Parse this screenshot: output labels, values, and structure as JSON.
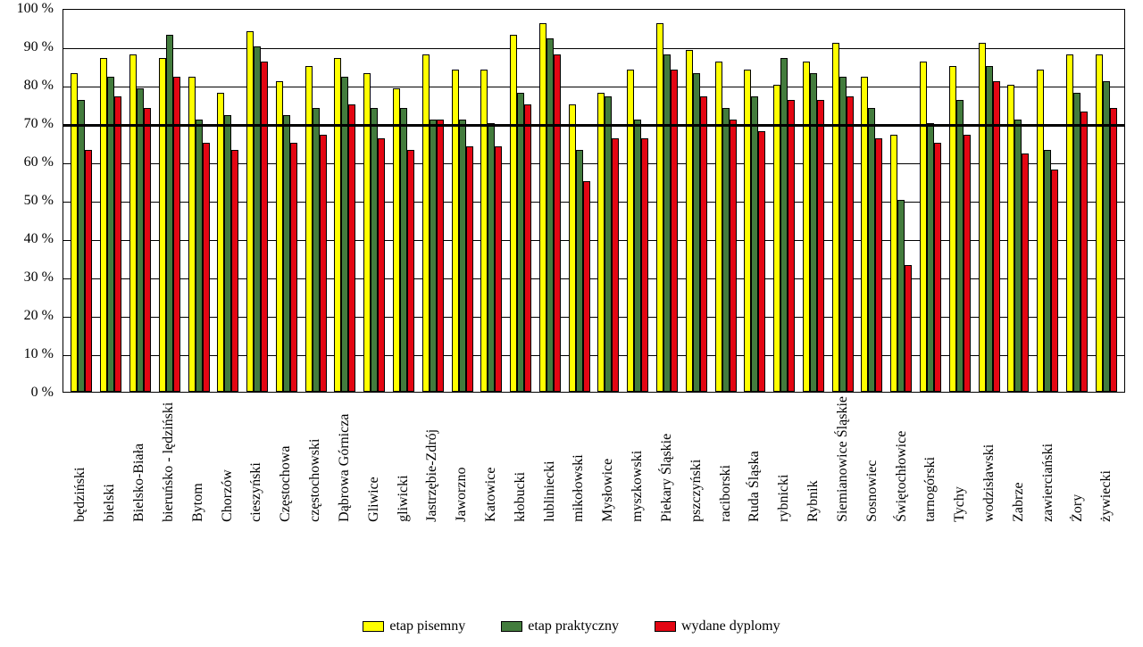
{
  "chart": {
    "type": "bar",
    "background_color": "#ffffff",
    "grid_color": "#000000",
    "border_color": "#000000",
    "ylim": [
      0,
      100
    ],
    "ytick_step": 10,
    "ytick_suffix": " %",
    "reference_line": 70,
    "reference_line_width": 3,
    "bar_border_color": "#000000",
    "font_family": "Times New Roman",
    "tick_fontsize": 16,
    "label_fontsize": 16,
    "series": [
      {
        "name": "etap pisemny",
        "color": "#ffff00"
      },
      {
        "name": "etap praktyczny",
        "color": "#437c3d"
      },
      {
        "name": "wydane dyplomy",
        "color": "#e30613"
      }
    ],
    "categories": [
      "będziński",
      "bielski",
      "Bielsko-Biała",
      "bieruńsko - lędziński",
      "Bytom",
      "Chorzów",
      "cieszyński",
      "Częstochowa",
      "częstochowski",
      "Dąbrowa Górnicza",
      "Gliwice",
      "gliwicki",
      "Jastrzębie-Zdrój",
      "Jaworzno",
      "Katowice",
      "kłobucki",
      "lubliniecki",
      "mikołowski",
      "Mysłowice",
      "myszkowski",
      "Piekary Śląskie",
      "pszczyński",
      "raciborski",
      "Ruda Śląska",
      "rybnicki",
      "Rybnik",
      "Siemianowice Śląskie",
      "Sosnowiec",
      "Świętochłowice",
      "tarnogórski",
      "Tychy",
      "wodzisławski",
      "Zabrze",
      "zawierciański",
      "Żory",
      "żywiecki"
    ],
    "data": {
      "etap_pisemny": [
        83,
        87,
        88,
        87,
        82,
        78,
        94,
        81,
        85,
        87,
        83,
        79,
        88,
        84,
        84,
        93,
        96,
        75,
        78,
        84,
        96,
        89,
        86,
        84,
        80,
        86,
        91,
        82,
        67,
        86,
        85,
        91,
        80,
        84,
        88,
        88
      ],
      "etap_praktyczny": [
        76,
        82,
        79,
        93,
        71,
        72,
        90,
        72,
        74,
        82,
        74,
        74,
        71,
        71,
        70,
        78,
        92,
        63,
        77,
        71,
        88,
        83,
        74,
        77,
        87,
        83,
        82,
        74,
        50,
        70,
        76,
        85,
        71,
        63,
        78,
        81
      ],
      "wydane_dyplomy": [
        63,
        77,
        74,
        82,
        65,
        63,
        86,
        65,
        67,
        75,
        66,
        63,
        71,
        64,
        64,
        75,
        88,
        55,
        66,
        66,
        84,
        77,
        71,
        68,
        76,
        76,
        77,
        66,
        33,
        65,
        67,
        81,
        62,
        58,
        73,
        74
      ]
    },
    "legend_position": "bottom"
  }
}
